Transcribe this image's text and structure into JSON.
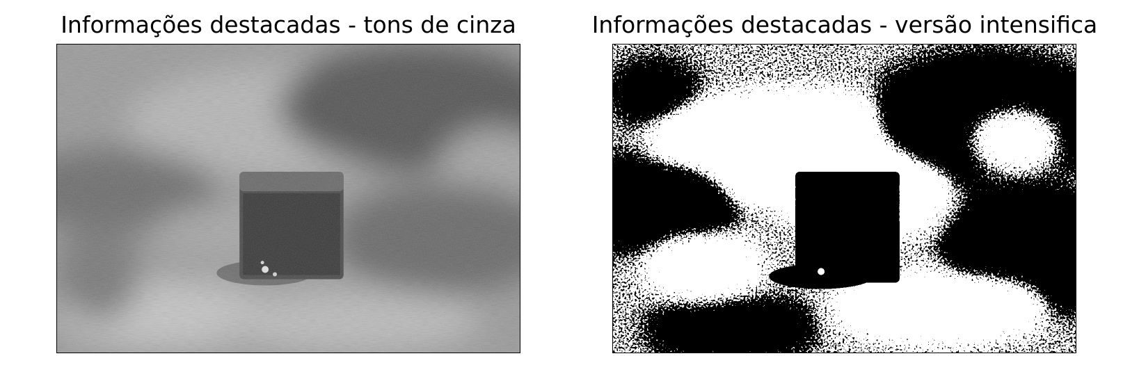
{
  "panels": [
    {
      "title": "Informações destacadas - tons de cinza",
      "image_style": "grayscale"
    },
    {
      "title": "Informações destacadas - versão intensifica",
      "image_style": "binary"
    }
  ],
  "colors": {
    "background": "#ffffff",
    "frame": "#000000"
  }
}
